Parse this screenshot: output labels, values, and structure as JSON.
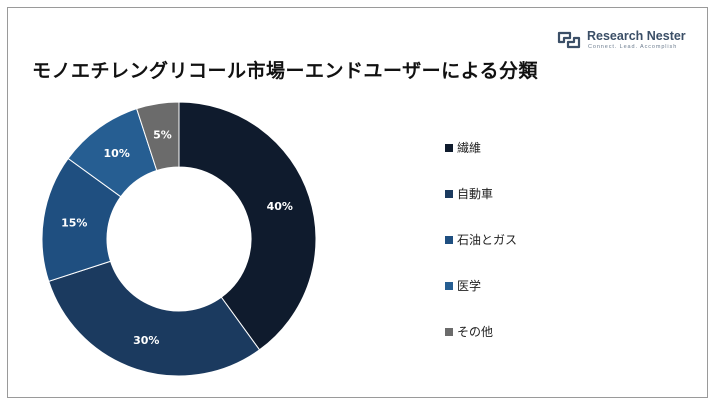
{
  "logo": {
    "name": "Research Nester",
    "tagline": "Connect. Lead. Accomplish",
    "color": "#3b4f67"
  },
  "chart_data": {
    "type": "donut",
    "title": "モノエチレングリコール市場ーエンドユーザーによる分類",
    "categories": [
      "繊維",
      "自動車",
      "石油とガス",
      "医学",
      "その他"
    ],
    "values": [
      40,
      30,
      15,
      10,
      5
    ],
    "labels": [
      "40%",
      "30%",
      "15%",
      "10%",
      "5%"
    ],
    "colors": [
      "#0f1b2d",
      "#1b3a5f",
      "#1f4f80",
      "#265e92",
      "#6b6b6b"
    ],
    "legend_position": "right"
  }
}
